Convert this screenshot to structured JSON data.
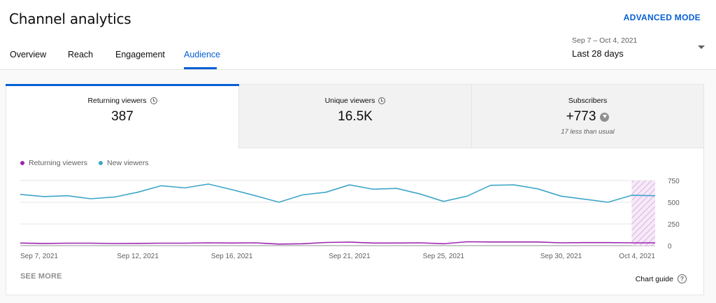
{
  "header": {
    "title": "Channel analytics",
    "advanced_mode": "ADVANCED MODE",
    "tabs": [
      {
        "label": "Overview",
        "active": false
      },
      {
        "label": "Reach",
        "active": false
      },
      {
        "label": "Engagement",
        "active": false
      },
      {
        "label": "Audience",
        "active": true
      }
    ],
    "date_range": {
      "dates": "Sep 7 – Oct 4, 2021",
      "label": "Last 28 days"
    }
  },
  "metrics": [
    {
      "label": "Returning viewers",
      "value": "387",
      "icon": "clock-icon",
      "active": true
    },
    {
      "label": "Unique viewers",
      "value": "16.5K",
      "icon": "clock-icon",
      "active": false
    },
    {
      "label": "Subscribers",
      "value": "+773",
      "icon": "arrow-down-circle-icon",
      "note": "17 less than usual",
      "active": false
    }
  ],
  "footer": {
    "see_more": "SEE MORE",
    "chart_guide": "Chart guide"
  },
  "colors": {
    "accent": "#065fd4",
    "returning": "#9c27b0",
    "new": "#3ea6c9"
  },
  "chart_data": {
    "type": "line",
    "x": [
      "Sep 7, 2021",
      "Sep 8, 2021",
      "Sep 9, 2021",
      "Sep 10, 2021",
      "Sep 11, 2021",
      "Sep 12, 2021",
      "Sep 13, 2021",
      "Sep 14, 2021",
      "Sep 15, 2021",
      "Sep 16, 2021",
      "Sep 17, 2021",
      "Sep 18, 2021",
      "Sep 19, 2021",
      "Sep 20, 2021",
      "Sep 21, 2021",
      "Sep 22, 2021",
      "Sep 23, 2021",
      "Sep 24, 2021",
      "Sep 25, 2021",
      "Sep 26, 2021",
      "Sep 27, 2021",
      "Sep 28, 2021",
      "Sep 29, 2021",
      "Sep 30, 2021",
      "Oct 1, 2021",
      "Oct 2, 2021",
      "Oct 3, 2021",
      "Oct 4, 2021"
    ],
    "x_tick_labels": [
      "Sep 7, 2021",
      "Sep 12, 2021",
      "Sep 16, 2021",
      "Sep 21, 2021",
      "Sep 25, 2021",
      "Sep 30, 2021",
      "Oct 4, 2021"
    ],
    "series": [
      {
        "name": "Returning viewers",
        "color": "#9c27b0",
        "values": [
          30,
          25,
          28,
          28,
          24,
          26,
          28,
          28,
          32,
          30,
          32,
          18,
          22,
          36,
          40,
          30,
          30,
          32,
          22,
          44,
          42,
          42,
          42,
          32,
          35,
          35,
          32,
          32
        ]
      },
      {
        "name": "New viewers",
        "color": "#3ea6c9",
        "values": [
          590,
          565,
          575,
          540,
          560,
          615,
          690,
          665,
          710,
          645,
          575,
          500,
          585,
          615,
          700,
          650,
          660,
          595,
          510,
          570,
          695,
          700,
          655,
          570,
          535,
          500,
          580,
          575
        ]
      }
    ],
    "ylim": [
      0,
      750
    ],
    "y_ticks": [
      0,
      250,
      500,
      750
    ],
    "highlight_last_point": true,
    "grid": true,
    "legend": "top-left"
  }
}
